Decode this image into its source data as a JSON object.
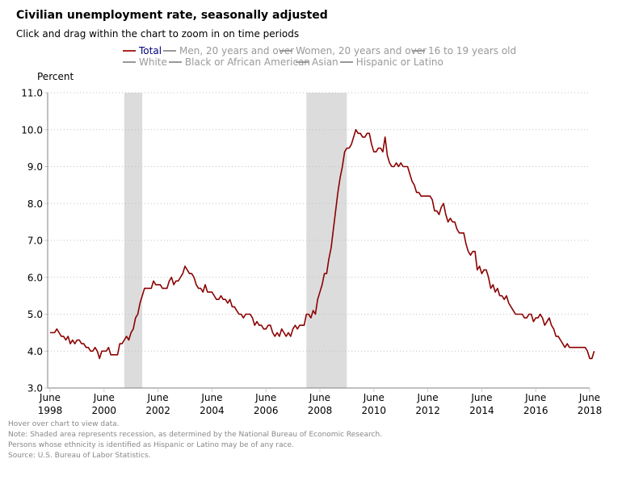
{
  "header": {
    "title": "Civilian unemployment rate, seasonally adjusted",
    "subtitle": "Click and drag within the chart to zoom in on time periods",
    "y_axis_label": "Percent"
  },
  "legend": {
    "rows": [
      [
        {
          "label": "Total",
          "active": true
        },
        {
          "label": "Men, 20 years and over",
          "active": false
        },
        {
          "label": "Women, 20 years and over",
          "active": false
        },
        {
          "label": "16 to 19 years old",
          "active": false
        }
      ],
      [
        {
          "label": "White",
          "active": false
        },
        {
          "label": "Black or African American",
          "active": false
        },
        {
          "label": "Asian",
          "active": false
        },
        {
          "label": "Hispanic or Latino",
          "active": false
        }
      ]
    ]
  },
  "notes": {
    "hover": "Hover over chart to view data.",
    "recession": "Note: Shaded area represents recession, as determined by the National Bureau of Economic Research.",
    "ethnicity": "Persons whose ethnicity is identified as Hispanic or Latino may be of any race.",
    "source": "Source: U.S. Bureau of Labor Statistics."
  },
  "colors": {
    "line": "#8b0000",
    "recession": "#dcdcdc",
    "grid": "#c0c0c0",
    "axis": "#808080"
  },
  "chart_data": {
    "type": "line",
    "title": "Civilian unemployment rate, seasonally adjusted",
    "xlabel": "",
    "ylabel": "Percent",
    "ylim": [
      3.0,
      11.0
    ],
    "xlim": [
      "1998-06",
      "2018-06"
    ],
    "grid": true,
    "legend_position": "top",
    "y_ticks": [
      "3.0",
      "4.0",
      "5.0",
      "6.0",
      "7.0",
      "8.0",
      "9.0",
      "10.0",
      "11.0"
    ],
    "x_ticks": [
      {
        "month": "June",
        "year": "1998"
      },
      {
        "month": "June",
        "year": "2000"
      },
      {
        "month": "June",
        "year": "2002"
      },
      {
        "month": "June",
        "year": "2004"
      },
      {
        "month": "June",
        "year": "2006"
      },
      {
        "month": "June",
        "year": "2008"
      },
      {
        "month": "June",
        "year": "2010"
      },
      {
        "month": "June",
        "year": "2012"
      },
      {
        "month": "June",
        "year": "2014"
      },
      {
        "month": "June",
        "year": "2016"
      },
      {
        "month": "June",
        "year": "2018"
      }
    ],
    "recessions": [
      {
        "start": "2001-03",
        "end": "2001-11"
      },
      {
        "start": "2007-12",
        "end": "2009-06"
      }
    ],
    "series": [
      {
        "name": "Total",
        "start": "1998-06",
        "frequency": "monthly",
        "values": [
          4.5,
          4.5,
          4.5,
          4.6,
          4.5,
          4.4,
          4.4,
          4.3,
          4.4,
          4.2,
          4.3,
          4.2,
          4.3,
          4.3,
          4.2,
          4.2,
          4.1,
          4.1,
          4.0,
          4.0,
          4.1,
          4.0,
          3.8,
          4.0,
          4.0,
          4.0,
          4.1,
          3.9,
          3.9,
          3.9,
          3.9,
          4.2,
          4.2,
          4.3,
          4.4,
          4.3,
          4.5,
          4.6,
          4.9,
          5.0,
          5.3,
          5.5,
          5.7,
          5.7,
          5.7,
          5.7,
          5.9,
          5.8,
          5.8,
          5.8,
          5.7,
          5.7,
          5.7,
          5.9,
          6.0,
          5.8,
          5.9,
          5.9,
          6.0,
          6.1,
          6.3,
          6.2,
          6.1,
          6.1,
          6.0,
          5.8,
          5.7,
          5.7,
          5.6,
          5.8,
          5.6,
          5.6,
          5.6,
          5.5,
          5.4,
          5.4,
          5.5,
          5.4,
          5.4,
          5.3,
          5.4,
          5.2,
          5.2,
          5.1,
          5.0,
          5.0,
          4.9,
          5.0,
          5.0,
          5.0,
          4.9,
          4.7,
          4.8,
          4.7,
          4.7,
          4.6,
          4.6,
          4.7,
          4.7,
          4.5,
          4.4,
          4.5,
          4.4,
          4.6,
          4.5,
          4.4,
          4.5,
          4.4,
          4.6,
          4.7,
          4.6,
          4.7,
          4.7,
          4.7,
          5.0,
          5.0,
          4.9,
          5.1,
          5.0,
          5.4,
          5.6,
          5.8,
          6.1,
          6.1,
          6.5,
          6.8,
          7.3,
          7.8,
          8.3,
          8.7,
          9.0,
          9.4,
          9.5,
          9.5,
          9.6,
          9.8,
          10.0,
          9.9,
          9.9,
          9.8,
          9.8,
          9.9,
          9.9,
          9.6,
          9.4,
          9.4,
          9.5,
          9.5,
          9.4,
          9.8,
          9.3,
          9.1,
          9.0,
          9.0,
          9.1,
          9.0,
          9.1,
          9.0,
          9.0,
          9.0,
          8.8,
          8.6,
          8.5,
          8.3,
          8.3,
          8.2,
          8.2,
          8.2,
          8.2,
          8.2,
          8.1,
          7.8,
          7.8,
          7.7,
          7.9,
          8.0,
          7.7,
          7.5,
          7.6,
          7.5,
          7.5,
          7.3,
          7.2,
          7.2,
          7.2,
          6.9,
          6.7,
          6.6,
          6.7,
          6.7,
          6.2,
          6.3,
          6.1,
          6.2,
          6.2,
          6.0,
          5.7,
          5.8,
          5.6,
          5.7,
          5.5,
          5.5,
          5.4,
          5.5,
          5.3,
          5.2,
          5.1,
          5.0,
          5.0,
          5.0,
          5.0,
          4.9,
          4.9,
          5.0,
          5.0,
          4.8,
          4.9,
          4.9,
          5.0,
          4.9,
          4.7,
          4.8,
          4.9,
          4.7,
          4.6,
          4.4,
          4.4,
          4.3,
          4.2,
          4.1,
          4.2,
          4.1,
          4.1,
          4.1,
          4.1,
          4.1,
          4.1,
          4.1,
          4.1,
          4.0,
          3.8,
          3.8,
          4.0
        ]
      }
    ]
  }
}
